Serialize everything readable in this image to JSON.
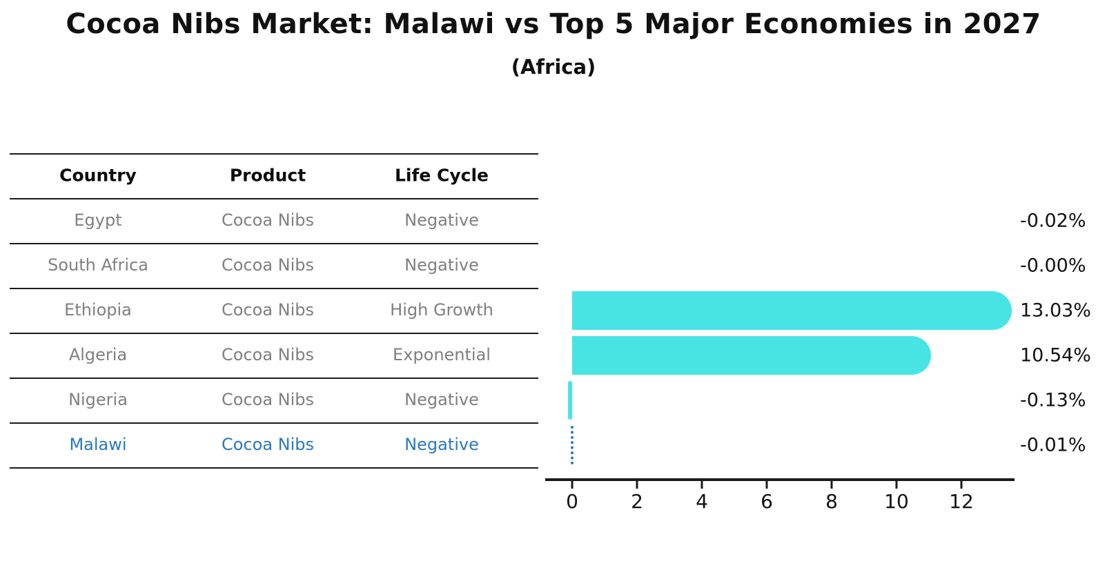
{
  "title": "Cocoa Nibs Market: Malawi vs Top 5 Major Economies in 2027",
  "subtitle": "(Africa)",
  "table": {
    "headers": [
      "Country",
      "Product",
      "Life Cycle"
    ],
    "rows": [
      {
        "country": "Egypt",
        "product": "Cocoa Nibs",
        "life_cycle": "Negative",
        "highlight": false
      },
      {
        "country": "South Africa",
        "product": "Cocoa Nibs",
        "life_cycle": "Negative",
        "highlight": false
      },
      {
        "country": "Ethiopia",
        "product": "Cocoa Nibs",
        "life_cycle": "High Growth",
        "highlight": false
      },
      {
        "country": "Algeria",
        "product": "Cocoa Nibs",
        "life_cycle": "Exponential",
        "highlight": false
      },
      {
        "country": "Nigeria",
        "product": "Cocoa Nibs",
        "life_cycle": "Negative",
        "highlight": false
      },
      {
        "country": "Malawi",
        "product": "Cocoa Nibs",
        "life_cycle": "Negative",
        "highlight": true
      }
    ]
  },
  "chart_data": {
    "type": "bar",
    "orientation": "horizontal",
    "title": "Cocoa Nibs Market: Malawi vs Top 5 Major Economies in 2027 (Africa)",
    "categories": [
      "Egypt",
      "South Africa",
      "Ethiopia",
      "Algeria",
      "Nigeria",
      "Malawi"
    ],
    "values": [
      -0.02,
      -0.004,
      13.03,
      10.54,
      -0.13,
      -0.01
    ],
    "value_labels": [
      "-0.02%",
      "-0.00%",
      "13.03%",
      "10.54%",
      "-0.13%",
      "-0.01%"
    ],
    "xlabel": "",
    "ylabel": "",
    "xticks": [
      0,
      2,
      4,
      6,
      8,
      10,
      12
    ],
    "xlim": [
      -0.8,
      13.7
    ],
    "grid": false,
    "legend": "none",
    "bar_color": "#48e4e4",
    "highlight_category": "Malawi",
    "highlight_color": "#2878c2",
    "highlight_marker": "dotted line at zero"
  },
  "colors": {
    "background": "#ffffff",
    "bar": "#48e4e4",
    "highlight_blue": "#2878c2",
    "table_text_gray": "#7f7f7f",
    "line_black": "#1a1a1a"
  }
}
